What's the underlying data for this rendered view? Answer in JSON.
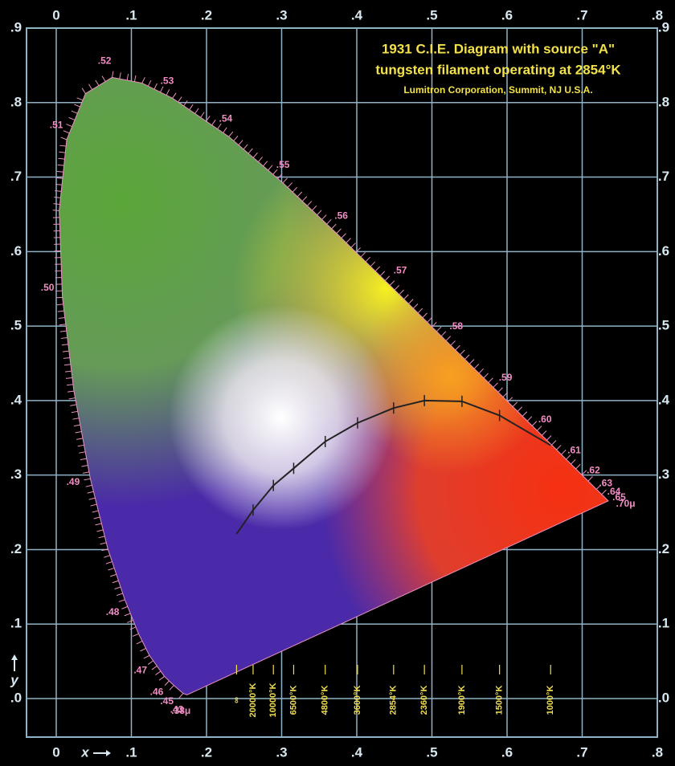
{
  "title": "1931 C.I.E. Diagram with source \"A\"",
  "subtitle": "tungsten filament operating at 2854°K",
  "credit": "Lumitron Corporation, Summit, NJ U.S.A.",
  "chart_data": {
    "type": "chromaticity",
    "xlabel": "x",
    "ylabel": "y",
    "xlim": [
      0,
      0.8
    ],
    "ylim": [
      0,
      0.9
    ],
    "xticks": [
      {
        "value": 0,
        "label": "0"
      },
      {
        "value": 0.1,
        "label": ".1"
      },
      {
        "value": 0.2,
        "label": ".2"
      },
      {
        "value": 0.3,
        "label": ".3"
      },
      {
        "value": 0.4,
        "label": ".4"
      },
      {
        "value": 0.5,
        "label": ".5"
      },
      {
        "value": 0.6,
        "label": ".6"
      },
      {
        "value": 0.7,
        "label": ".7"
      },
      {
        "value": 0.8,
        "label": ".8"
      }
    ],
    "yticks": [
      {
        "value": 0,
        "label": ".0"
      },
      {
        "value": 0.1,
        "label": ".1"
      },
      {
        "value": 0.2,
        "label": ".2"
      },
      {
        "value": 0.3,
        "label": ".3"
      },
      {
        "value": 0.4,
        "label": ".4"
      },
      {
        "value": 0.5,
        "label": ".5"
      },
      {
        "value": 0.6,
        "label": ".6"
      },
      {
        "value": 0.7,
        "label": ".7"
      },
      {
        "value": 0.8,
        "label": ".8"
      },
      {
        "value": 0.9,
        "label": ".9"
      }
    ],
    "grid": true,
    "spectral_locus": {
      "x": [
        0.1741,
        0.1689,
        0.1566,
        0.144,
        0.1241,
        0.1096,
        0.0913,
        0.0687,
        0.0454,
        0.0235,
        0.0082,
        0.0039,
        0.0139,
        0.0389,
        0.0743,
        0.1142,
        0.1547,
        0.2296,
        0.3016,
        0.3731,
        0.4441,
        0.5125,
        0.5752,
        0.627,
        0.6658,
        0.6915,
        0.7079,
        0.719,
        0.726,
        0.7347
      ],
      "y": [
        0.005,
        0.0069,
        0.0177,
        0.0297,
        0.0578,
        0.0868,
        0.1327,
        0.2007,
        0.295,
        0.4127,
        0.5384,
        0.6548,
        0.7502,
        0.812,
        0.8338,
        0.8262,
        0.8059,
        0.7543,
        0.6923,
        0.6245,
        0.5547,
        0.4866,
        0.4242,
        0.3725,
        0.334,
        0.3083,
        0.292,
        0.2809,
        0.274,
        0.2653
      ],
      "labels": [
        ".38μ",
        ".43",
        ".45",
        ".46",
        ".47",
        null,
        ".48",
        null,
        ".49",
        null,
        ".50",
        null,
        ".51",
        null,
        ".52",
        null,
        ".53",
        ".54",
        ".55",
        ".56",
        ".57",
        ".58",
        ".59",
        ".60",
        ".61",
        ".62",
        ".63",
        ".64",
        ".65",
        ".70μ"
      ]
    },
    "planckian_locus": {
      "x": [
        0.24,
        0.262,
        0.289,
        0.316,
        0.358,
        0.401,
        0.449,
        0.49,
        0.54,
        0.59,
        0.658
      ],
      "y": [
        0.221,
        0.253,
        0.286,
        0.309,
        0.345,
        0.37,
        0.39,
        0.4,
        0.399,
        0.38,
        0.34
      ],
      "labels": [
        "∞",
        "20000°K",
        "10000°K",
        "6500°K",
        "4800°K",
        "3600°K",
        "2854°K",
        "2360°K",
        "1900°K",
        "1500°K",
        "1000°K"
      ]
    }
  }
}
